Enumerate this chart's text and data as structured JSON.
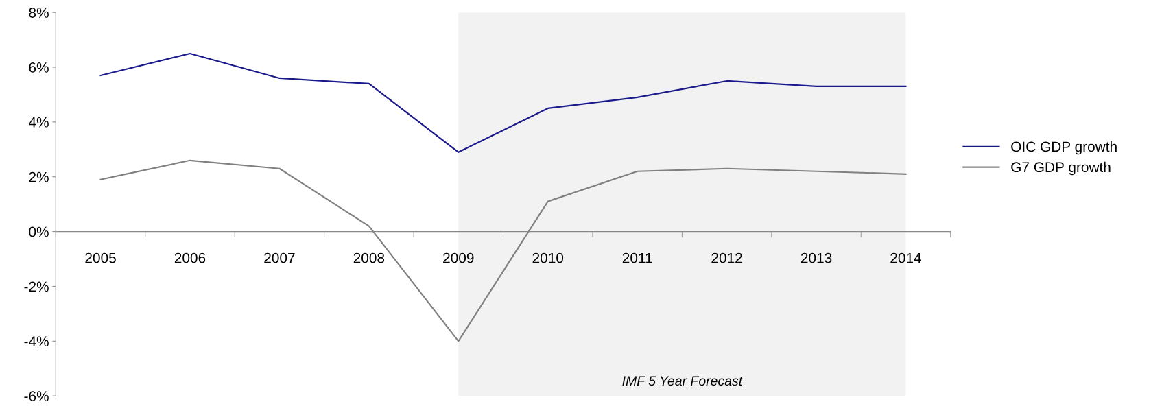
{
  "chart_data": {
    "type": "line",
    "categories": [
      "2005",
      "2006",
      "2007",
      "2008",
      "2009",
      "2010",
      "2011",
      "2012",
      "2013",
      "2014"
    ],
    "series": [
      {
        "name": "OIC GDP growth",
        "color": "#1a1a8c",
        "values": [
          5.7,
          6.5,
          5.6,
          5.4,
          2.9,
          4.5,
          4.9,
          5.5,
          5.3,
          5.3
        ]
      },
      {
        "name": "G7 GDP growth",
        "color": "#808080",
        "values": [
          1.9,
          2.6,
          2.3,
          0.2,
          -4.0,
          1.1,
          2.2,
          2.3,
          2.2,
          2.1
        ]
      }
    ],
    "ylim": [
      -6,
      8
    ],
    "yticks": [
      {
        "value": -6,
        "label": "-6%"
      },
      {
        "value": -4,
        "label": "-4%"
      },
      {
        "value": -2,
        "label": "-2%"
      },
      {
        "value": 0,
        "label": "0%"
      },
      {
        "value": 2,
        "label": "2%"
      },
      {
        "value": 4,
        "label": "4%"
      },
      {
        "value": 6,
        "label": "6%"
      },
      {
        "value": 8,
        "label": "8%"
      }
    ],
    "bands": [
      {
        "axis": "x",
        "from": "2009",
        "to": "2014",
        "label": "IMF 5 Year Forecast",
        "color": "#f2f2f2"
      }
    ],
    "grid": false,
    "legend": "right",
    "marker": "none",
    "line_style": "solid"
  }
}
